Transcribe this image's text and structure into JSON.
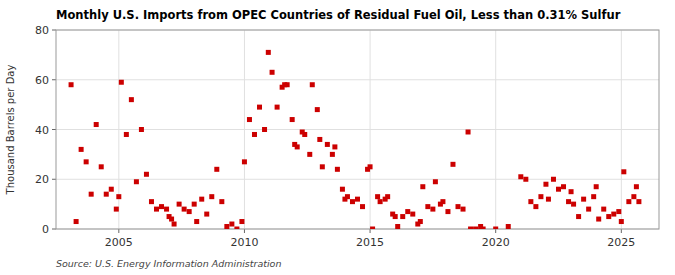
{
  "chart_data": {
    "type": "scatter",
    "title": "Monthly U.S. Imports from OPEC Countries of Residual Fuel Oil, Less than 0.31% Sulfur",
    "ylabel": "Thousand Barrels per Day",
    "annotations": [
      "Source: U.S. Energy Information Administration"
    ],
    "color": "#cc0000",
    "marker": "square",
    "grid": true,
    "xlim": [
      2002.5,
      2026.5
    ],
    "ylim": [
      0,
      80
    ],
    "xticks": [
      2005,
      2010,
      2015,
      2020,
      2025
    ],
    "yticks": [
      0,
      20,
      40,
      60,
      80
    ],
    "x": [
      2003.1,
      2003.3,
      2003.5,
      2003.7,
      2003.9,
      2004.1,
      2004.3,
      2004.5,
      2004.7,
      2004.9,
      2005.0,
      2005.1,
      2005.3,
      2005.5,
      2005.7,
      2005.9,
      2006.1,
      2006.3,
      2006.5,
      2006.7,
      2006.9,
      2007.0,
      2007.1,
      2007.2,
      2007.4,
      2007.6,
      2007.8,
      2008.0,
      2008.1,
      2008.3,
      2008.5,
      2008.7,
      2008.9,
      2009.1,
      2009.3,
      2009.5,
      2009.7,
      2009.9,
      2010.0,
      2010.2,
      2010.4,
      2010.6,
      2010.8,
      2010.95,
      2011.1,
      2011.3,
      2011.5,
      2011.6,
      2011.7,
      2011.9,
      2012.0,
      2012.1,
      2012.3,
      2012.4,
      2012.6,
      2012.7,
      2012.9,
      2013.0,
      2013.1,
      2013.3,
      2013.5,
      2013.6,
      2013.7,
      2013.9,
      2014.0,
      2014.1,
      2014.3,
      2014.5,
      2014.7,
      2014.9,
      2015.0,
      2015.1,
      2015.3,
      2015.4,
      2015.6,
      2015.7,
      2015.9,
      2016.0,
      2016.1,
      2016.3,
      2016.5,
      2016.7,
      2016.9,
      2017.0,
      2017.1,
      2017.3,
      2017.5,
      2017.6,
      2017.8,
      2017.9,
      2018.1,
      2018.3,
      2018.5,
      2018.7,
      2018.9,
      2019.0,
      2019.2,
      2019.4,
      2019.5,
      2020.0,
      2020.5,
      2021.0,
      2021.2,
      2021.4,
      2021.6,
      2021.8,
      2022.0,
      2022.1,
      2022.3,
      2022.5,
      2022.7,
      2022.9,
      2023.0,
      2023.1,
      2023.3,
      2023.5,
      2023.7,
      2023.9,
      2024.0,
      2024.1,
      2024.3,
      2024.5,
      2024.7,
      2024.9,
      2025.0,
      2025.1,
      2025.3,
      2025.5,
      2025.6,
      2025.7
    ],
    "values": [
      58,
      3,
      32,
      27,
      14,
      42,
      25,
      14,
      16,
      8,
      13,
      59,
      38,
      52,
      19,
      40,
      22,
      11,
      8,
      9,
      8,
      5,
      4,
      2,
      10,
      8,
      7,
      10,
      3,
      12,
      6,
      13,
      24,
      11,
      1,
      2,
      0,
      3,
      27,
      44,
      38,
      49,
      40,
      71,
      63,
      49,
      57,
      58,
      58,
      44,
      34,
      33,
      39,
      38,
      30,
      58,
      48,
      36,
      25,
      34,
      30,
      33,
      24,
      16,
      12,
      13,
      11,
      12,
      9,
      24,
      25,
      0,
      13,
      11,
      12,
      13,
      6,
      5,
      1,
      5,
      7,
      6,
      2,
      3,
      17,
      9,
      8,
      19,
      10,
      11,
      7,
      26,
      9,
      8,
      39,
      0,
      0,
      1,
      0,
      0,
      1,
      21,
      20,
      11,
      9,
      13,
      18,
      12,
      20,
      16,
      17,
      11,
      15,
      10,
      5,
      12,
      8,
      13,
      17,
      4,
      8,
      5,
      6,
      7,
      3,
      23,
      11,
      13,
      17,
      11
    ]
  }
}
